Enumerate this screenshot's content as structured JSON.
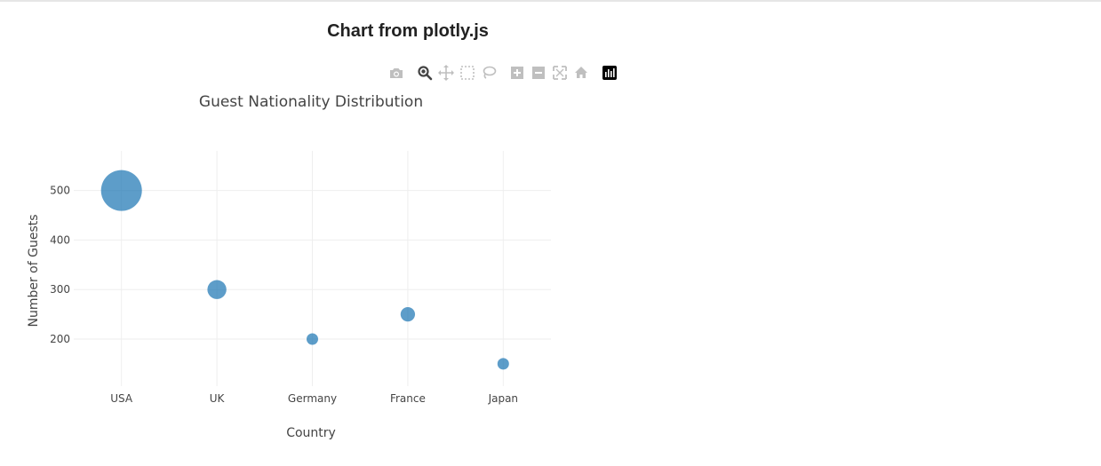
{
  "page": {
    "title": "Chart from plotly.js"
  },
  "modebar": {
    "buttons": [
      {
        "icon": "camera-icon",
        "label": "Download plot as a png"
      },
      {
        "icon": "zoom-icon",
        "label": "Zoom"
      },
      {
        "icon": "pan-icon",
        "label": "Pan"
      },
      {
        "icon": "box-select-icon",
        "label": "Box Select"
      },
      {
        "icon": "lasso-select-icon",
        "label": "Lasso Select"
      },
      {
        "icon": "zoom-in-icon",
        "label": "Zoom in"
      },
      {
        "icon": "zoom-out-icon",
        "label": "Zoom out"
      },
      {
        "icon": "autoscale-icon",
        "label": "Autoscale"
      },
      {
        "icon": "reset-axes-icon",
        "label": "Reset axes"
      },
      {
        "icon": "plotly-logo-icon",
        "label": "Produced with Plotly"
      }
    ]
  },
  "colors": {
    "marker": "#1f77b4",
    "grid": "#eeeeee",
    "text": "#444444",
    "icon": "#bfbfbf",
    "icon_active": "#444444"
  },
  "chart_data": {
    "type": "scatter",
    "title": "Guest Nationality Distribution",
    "xlabel": "Country",
    "ylabel": "Number of Guests",
    "categories": [
      "USA",
      "UK",
      "Germany",
      "France",
      "Japan"
    ],
    "values": [
      500,
      300,
      200,
      250,
      150
    ],
    "yticks": [
      200,
      300,
      400,
      500
    ],
    "ylim": [
      105,
      580
    ],
    "marker_size_by_value": true,
    "grid": true,
    "legend": "none"
  }
}
